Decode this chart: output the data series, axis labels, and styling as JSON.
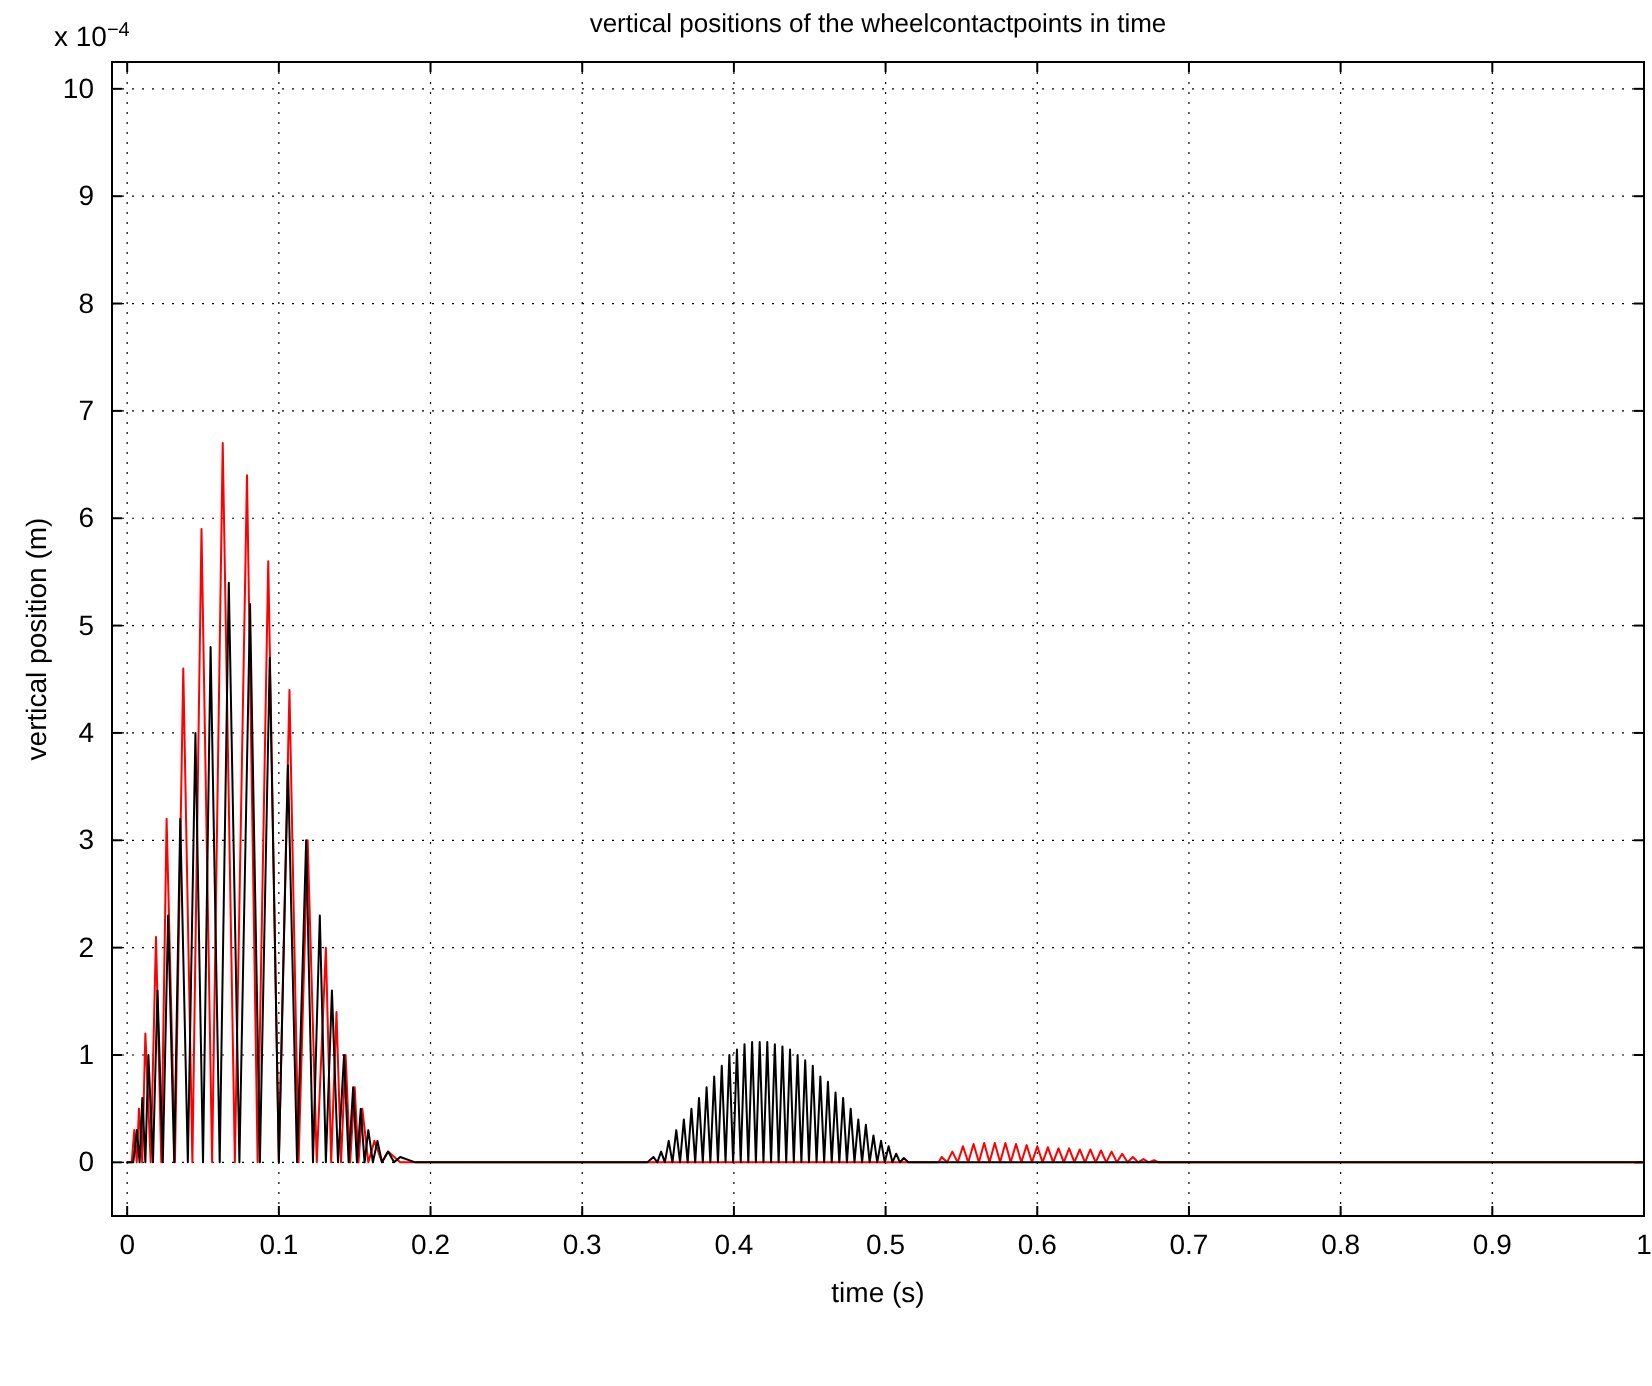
{
  "chart_data": {
    "type": "line",
    "title": "vertical positions of the wheelcontactpoints in time",
    "xlabel": "time (s)",
    "ylabel": "vertical position (m)",
    "annotations": [
      "x 10$^{−4}$"
    ],
    "xlim": [
      -0.01,
      1
    ],
    "xticks": [
      0,
      0.1,
      0.2,
      0.3,
      0.4,
      0.5,
      0.6,
      0.7,
      0.8,
      0.9,
      1
    ],
    "ylim": [
      -0.5,
      10.25
    ],
    "yticks": [
      0,
      1,
      2,
      3,
      4,
      5,
      6,
      7,
      8,
      9,
      10
    ],
    "grid": true,
    "line_style": "solid",
    "series": [
      {
        "color": "#ff0000",
        "x": [
          0,
          0.003,
          0.0047,
          0.0063,
          0.0078,
          0.0099,
          0.012,
          0.0155,
          0.019,
          0.0225,
          0.026,
          0.0315,
          0.037,
          0.043,
          0.049,
          0.056,
          0.063,
          0.071,
          0.079,
          0.086,
          0.093,
          0.1,
          0.107,
          0.113,
          0.119,
          0.125,
          0.131,
          0.1345,
          0.138,
          0.141,
          0.144,
          0.147,
          0.15,
          0.1525,
          0.155,
          0.159,
          0.163,
          0.168,
          0.172,
          0.18,
          0.535,
          0.537,
          0.5405,
          0.544,
          0.5475,
          0.551,
          0.5545,
          0.558,
          0.5615,
          0.565,
          0.5685,
          0.572,
          0.5755,
          0.579,
          0.5825,
          0.586,
          0.5895,
          0.593,
          0.5965,
          0.6,
          0.6035,
          0.607,
          0.6105,
          0.614,
          0.6175,
          0.621,
          0.6245,
          0.628,
          0.6315,
          0.635,
          0.6385,
          0.642,
          0.6455,
          0.649,
          0.6525,
          0.656,
          0.6595,
          0.663,
          0.6665,
          0.67,
          0.6735,
          0.677,
          0.68,
          1
        ],
        "values": [
          0,
          0,
          0.3,
          0,
          0.5,
          0,
          1.2,
          0,
          2.1,
          0,
          3.2,
          0,
          4.6,
          0,
          5.9,
          0,
          6.7,
          0,
          6.4,
          0,
          5.6,
          0,
          4.4,
          0,
          3.0,
          0,
          2.0,
          0,
          1.4,
          0,
          1.0,
          0,
          0.7,
          0,
          0.5,
          0,
          0.2,
          0,
          0.1,
          0,
          0,
          0.05,
          0,
          0.1,
          0,
          0.15,
          0,
          0.17,
          0,
          0.18,
          0,
          0.18,
          0,
          0.18,
          0,
          0.17,
          0,
          0.16,
          0,
          0.15,
          0,
          0.14,
          0,
          0.13,
          0,
          0.13,
          0,
          0.12,
          0,
          0.12,
          0,
          0.11,
          0,
          0.1,
          0,
          0.08,
          0,
          0.05,
          0,
          0.03,
          0,
          0.02,
          0,
          0
        ]
      },
      {
        "color": "#000000",
        "x": [
          0,
          0.004,
          0.0064,
          0.0082,
          0.01,
          0.012,
          0.014,
          0.017,
          0.02,
          0.0235,
          0.027,
          0.031,
          0.035,
          0.04,
          0.045,
          0.05,
          0.055,
          0.061,
          0.067,
          0.074,
          0.081,
          0.0875,
          0.094,
          0.1,
          0.106,
          0.112,
          0.118,
          0.1225,
          0.127,
          0.131,
          0.135,
          0.139,
          0.143,
          0.146,
          0.149,
          0.1515,
          0.154,
          0.1565,
          0.159,
          0.162,
          0.165,
          0.168,
          0.172,
          0.176,
          0.18,
          0.19,
          0.343,
          0.347,
          0.3495,
          0.352,
          0.3545,
          0.357,
          0.3595,
          0.362,
          0.3645,
          0.367,
          0.3695,
          0.372,
          0.3745,
          0.377,
          0.3795,
          0.382,
          0.3845,
          0.387,
          0.3895,
          0.392,
          0.3945,
          0.397,
          0.3995,
          0.402,
          0.4045,
          0.407,
          0.4095,
          0.412,
          0.4145,
          0.417,
          0.4195,
          0.422,
          0.4245,
          0.427,
          0.4295,
          0.432,
          0.4345,
          0.437,
          0.4395,
          0.442,
          0.4445,
          0.447,
          0.4495,
          0.452,
          0.4545,
          0.457,
          0.4595,
          0.462,
          0.4645,
          0.467,
          0.4695,
          0.472,
          0.4745,
          0.477,
          0.4795,
          0.482,
          0.4845,
          0.487,
          0.4895,
          0.492,
          0.4945,
          0.497,
          0.4995,
          0.502,
          0.5045,
          0.507,
          0.5095,
          0.512,
          0.515,
          1
        ],
        "values": [
          0,
          0,
          0.3,
          0,
          0.6,
          0,
          1.0,
          0,
          1.6,
          0,
          2.3,
          0,
          3.2,
          0,
          4.0,
          0,
          4.8,
          0,
          5.4,
          0,
          5.2,
          0,
          4.7,
          0,
          3.7,
          0,
          3.0,
          0,
          2.3,
          0,
          1.6,
          0,
          1.0,
          0,
          0.7,
          0,
          0.5,
          0,
          0.3,
          0,
          0.2,
          0,
          0.1,
          0,
          0.05,
          0,
          0,
          0.05,
          0,
          0.1,
          0,
          0.2,
          0,
          0.3,
          0,
          0.4,
          0,
          0.5,
          0,
          0.6,
          0,
          0.7,
          0,
          0.8,
          0,
          0.9,
          0,
          1.0,
          0,
          1.05,
          0,
          1.1,
          0,
          1.12,
          0,
          1.12,
          0,
          1.12,
          0,
          1.1,
          0,
          1.08,
          0,
          1.05,
          0,
          1.0,
          0,
          0.95,
          0,
          0.9,
          0,
          0.8,
          0,
          0.75,
          0,
          0.65,
          0,
          0.6,
          0,
          0.5,
          0,
          0.4,
          0,
          0.35,
          0,
          0.25,
          0,
          0.2,
          0,
          0.15,
          0,
          0.08,
          0,
          0.04,
          0,
          0
        ]
      }
    ]
  }
}
